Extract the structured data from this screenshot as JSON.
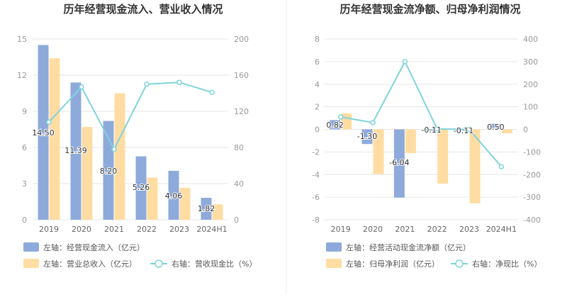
{
  "colors": {
    "bar_left": "#8eaadb",
    "bar_right": "#ffdca2",
    "line": "#7fd3dc",
    "grid": "#e6e6e6",
    "axis_text": "#999999",
    "title": "#333333",
    "label_text": "#333333",
    "divider": "#eeeeee"
  },
  "chart_data": [
    {
      "type": "bar",
      "title": "历年经营现金流入、营业收入情况",
      "categories": [
        "2019",
        "2020",
        "2021",
        "2022",
        "2023",
        "2024H1"
      ],
      "y_left": {
        "min": 0,
        "max": 15,
        "ticks": [
          "0",
          "3",
          "6",
          "9",
          "12",
          "15"
        ]
      },
      "y_right": {
        "min": 0,
        "max": 200,
        "ticks": [
          "0",
          "40",
          "80",
          "120",
          "160",
          "200"
        ]
      },
      "series": [
        {
          "name": "左轴：经营现金流入（亿元）",
          "axis": "left",
          "kind": "bar",
          "values": [
            14.5,
            11.39,
            8.2,
            5.26,
            4.06,
            1.82
          ],
          "labels": [
            "14.50",
            "11.39",
            "8.20",
            "5.26",
            "4.06",
            "1.82"
          ]
        },
        {
          "name": "左轴：营业总收入（亿元）",
          "axis": "left",
          "kind": "bar",
          "values": [
            13.4,
            7.7,
            10.5,
            3.5,
            2.65,
            1.28
          ]
        },
        {
          "name": "右轴：营收现金比（%）",
          "axis": "right",
          "kind": "line",
          "values": [
            108,
            147,
            78,
            150,
            152,
            141
          ]
        }
      ]
    },
    {
      "type": "bar",
      "title": "历年经营现金流净额、归母净利润情况",
      "categories": [
        "2019",
        "2020",
        "2021",
        "2022",
        "2023",
        "2024H1"
      ],
      "y_left": {
        "min": -8,
        "max": 8,
        "ticks": [
          "-8",
          "-6",
          "-4",
          "-2",
          "0",
          "2",
          "4",
          "6",
          "8"
        ]
      },
      "y_right": {
        "min": -400,
        "max": 400,
        "ticks": [
          "-400",
          "-300",
          "-200",
          "-100",
          "0",
          "100",
          "200",
          "300",
          "400"
        ]
      },
      "series": [
        {
          "name": "左轴：经营活动现金流净额（亿元）",
          "axis": "left",
          "kind": "bar",
          "values": [
            0.82,
            -1.3,
            -6.04,
            -0.11,
            -0.11,
            0.5
          ],
          "labels": [
            "0.82",
            "-1.30",
            "-6.04",
            "-0.11",
            "-0.11",
            "0.50"
          ]
        },
        {
          "name": "左轴：归母净利润（亿元）",
          "axis": "left",
          "kind": "bar",
          "values": [
            1.4,
            -3.95,
            -2.1,
            -4.8,
            -6.55,
            -0.35
          ]
        },
        {
          "name": "右轴：净现比（%）",
          "axis": "right",
          "kind": "line",
          "values": [
            55,
            30,
            300,
            2,
            0,
            -165
          ]
        }
      ]
    }
  ]
}
